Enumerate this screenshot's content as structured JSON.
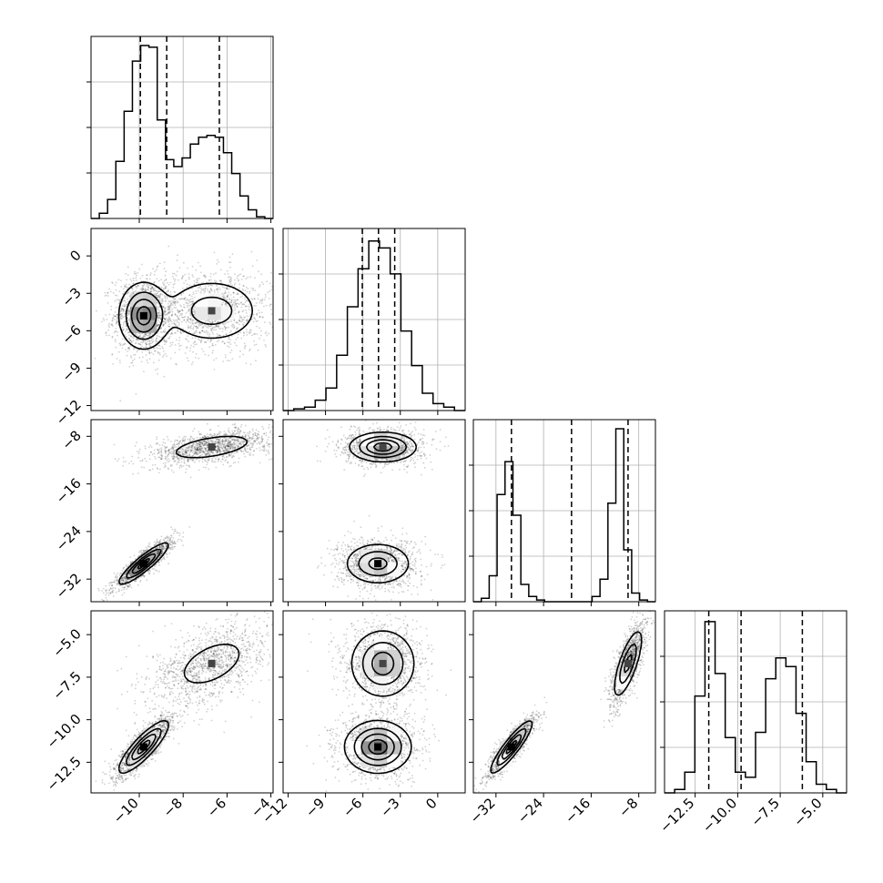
{
  "chart_data": {
    "type": "corner",
    "ndim": 4,
    "params": [
      {
        "range": [
          -12.2,
          -3.9
        ],
        "ticks": [
          -10,
          -8,
          -6,
          -4
        ],
        "tick_labels": [
          "−10",
          "−8",
          "−6",
          "−4"
        ],
        "quantiles": [
          -9.95,
          -8.75,
          -6.35
        ],
        "hist_max": 1.0,
        "hist": [
          0.0,
          0.03,
          0.11,
          0.33,
          0.62,
          0.91,
          1.0,
          0.99,
          0.57,
          0.34,
          0.3,
          0.35,
          0.43,
          0.47,
          0.48,
          0.47,
          0.38,
          0.26,
          0.13,
          0.05,
          0.01,
          0.0
        ]
      },
      {
        "range": [
          -12.4,
          2.2
        ],
        "ticks": [
          -12,
          -9,
          -6,
          -3,
          0
        ],
        "tick_labels": [
          "−12",
          "−9",
          "−6",
          "−3",
          "0"
        ],
        "quantiles": [
          -6.05,
          -4.75,
          -3.45
        ],
        "hist_max": 1.0,
        "hist": [
          0.0,
          0.01,
          0.02,
          0.06,
          0.13,
          0.32,
          0.6,
          0.82,
          0.98,
          0.94,
          0.79,
          0.46,
          0.26,
          0.1,
          0.04,
          0.02,
          0.0
        ]
      },
      {
        "range": [
          -35.8,
          -5.2
        ],
        "ticks": [
          -32,
          -24,
          -16,
          -8
        ],
        "tick_labels": [
          "−32",
          "−24",
          "−16",
          "−8"
        ],
        "quantiles": [
          -29.4,
          -19.3,
          -9.8
        ],
        "hist_max": 1.0,
        "hist": [
          0.0,
          0.02,
          0.15,
          0.62,
          0.81,
          0.5,
          0.1,
          0.03,
          0.01,
          0.0,
          0.0,
          0.0,
          0.0,
          0.0,
          0.0,
          0.03,
          0.13,
          0.57,
          1.0,
          0.3,
          0.05,
          0.01,
          0.0
        ]
      },
      {
        "range": [
          -14.3,
          -3.6
        ],
        "ticks": [
          -12.5,
          -10,
          -7.5,
          -5
        ],
        "tick_labels": [
          "−12.5",
          "−10.0",
          "−7.5",
          "−5.0"
        ],
        "quantiles": [
          -11.7,
          -9.8,
          -6.2
        ],
        "hist_max": 1.0,
        "hist": [
          0.0,
          0.02,
          0.12,
          0.56,
          0.99,
          0.69,
          0.32,
          0.12,
          0.09,
          0.35,
          0.66,
          0.78,
          0.73,
          0.46,
          0.18,
          0.05,
          0.02,
          0.0
        ]
      }
    ],
    "modes": [
      {
        "center": [
          -9.8,
          -4.8,
          -29.4,
          -11.6
        ],
        "sd": [
          0.55,
          1.3,
          1.7,
          0.75
        ],
        "corr": {
          "0-2": 0.9,
          "0-3": 0.85,
          "2-3": 0.9
        }
      },
      {
        "center": [
          -6.7,
          -4.4,
          -9.8,
          -6.7
        ],
        "sd": [
          1.1,
          1.3,
          1.2,
          1.0
        ],
        "corr": {
          "0-2": 0.5,
          "0-3": 0.5,
          "2-3": 0.75
        }
      }
    ],
    "grid": true
  }
}
